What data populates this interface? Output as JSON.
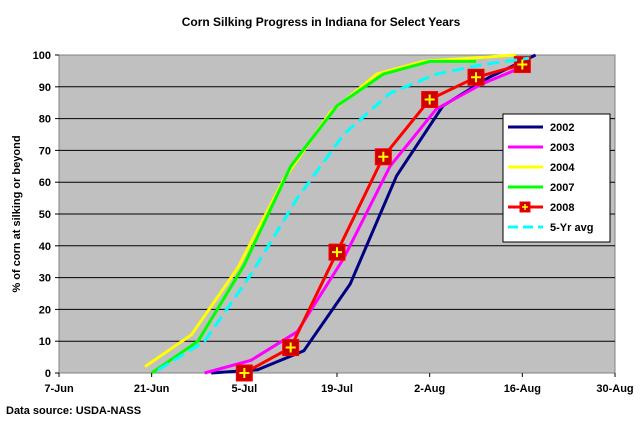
{
  "chart_data": {
    "type": "line",
    "title": "Corn Silking Progress in Indiana for Select Years",
    "xlabel": "",
    "ylabel": "% of corn at silking or beyond",
    "source": "Data source: USDA-NASS",
    "x_axis": {
      "type": "date",
      "range": [
        "2000-06-07",
        "2000-08-30"
      ],
      "tick_labels": [
        "7-Jun",
        "21-Jun",
        "5-Jul",
        "19-Jul",
        "2-Aug",
        "16-Aug",
        "30-Aug"
      ]
    },
    "ylim": [
      0,
      100
    ],
    "y_ticks": [
      0,
      10,
      20,
      30,
      40,
      50,
      60,
      70,
      80,
      90,
      100
    ],
    "grid": "horizontal",
    "legend_position": "right",
    "series": [
      {
        "name": "2002",
        "color": "#000080",
        "dash": "solid",
        "marker": "none",
        "points": [
          [
            "2000-06-30",
            0
          ],
          [
            "2000-07-07",
            1
          ],
          [
            "2000-07-14",
            7
          ],
          [
            "2000-07-21",
            28
          ],
          [
            "2000-07-28",
            62
          ],
          [
            "2000-08-04",
            84
          ],
          [
            "2000-08-11",
            93
          ],
          [
            "2000-08-18",
            100
          ]
        ]
      },
      {
        "name": "2003",
        "color": "#ff00ff",
        "dash": "solid",
        "marker": "none",
        "points": [
          [
            "2000-06-29",
            0
          ],
          [
            "2000-07-06",
            4
          ],
          [
            "2000-07-13",
            13
          ],
          [
            "2000-07-20",
            36
          ],
          [
            "2000-07-27",
            65
          ],
          [
            "2000-08-03",
            83
          ],
          [
            "2000-08-10",
            91
          ],
          [
            "2000-08-17",
            97
          ]
        ]
      },
      {
        "name": "2004",
        "color": "#ffff00",
        "dash": "solid",
        "marker": "none",
        "points": [
          [
            "2000-06-20",
            2
          ],
          [
            "2000-06-27",
            12
          ],
          [
            "2000-07-04",
            33
          ],
          [
            "2000-07-11",
            61
          ],
          [
            "2000-07-18",
            82
          ],
          [
            "2000-07-25",
            94
          ],
          [
            "2000-08-01",
            98
          ],
          [
            "2000-08-08",
            99
          ],
          [
            "2000-08-15",
            100
          ]
        ]
      },
      {
        "name": "2007",
        "color": "#00ff00",
        "dash": "solid",
        "marker": "none",
        "points": [
          [
            "2000-06-21",
            0
          ],
          [
            "2000-06-28",
            10
          ],
          [
            "2000-07-05",
            34
          ],
          [
            "2000-07-12",
            65
          ],
          [
            "2000-07-19",
            84
          ],
          [
            "2000-07-26",
            94
          ],
          [
            "2000-08-02",
            98
          ],
          [
            "2000-08-09",
            98
          ]
        ]
      },
      {
        "name": "2008",
        "color": "#ff0000",
        "dash": "solid",
        "marker": "square-cross",
        "marker_fill": "#cc0000",
        "marker_cross": "#ffff00",
        "points": [
          [
            "2000-07-05",
            0
          ],
          [
            "2000-07-12",
            8
          ],
          [
            "2000-07-19",
            38
          ],
          [
            "2000-07-26",
            68
          ],
          [
            "2000-08-02",
            86
          ],
          [
            "2000-08-09",
            93
          ],
          [
            "2000-08-16",
            97
          ]
        ]
      },
      {
        "name": "5-Yr avg",
        "color": "#00ffff",
        "dash": "dashed",
        "marker": "none",
        "points": [
          [
            "2000-06-22",
            1
          ],
          [
            "2000-06-29",
            10
          ],
          [
            "2000-07-06",
            31
          ],
          [
            "2000-07-13",
            55
          ],
          [
            "2000-07-20",
            75
          ],
          [
            "2000-07-27",
            88
          ],
          [
            "2000-08-03",
            94
          ],
          [
            "2000-08-10",
            97
          ],
          [
            "2000-08-17",
            99
          ]
        ]
      }
    ]
  },
  "colors": {
    "plot_background": "#c0c0c0",
    "gridline": "#000000",
    "axis": "#808080",
    "legend_background": "#ffffff"
  }
}
